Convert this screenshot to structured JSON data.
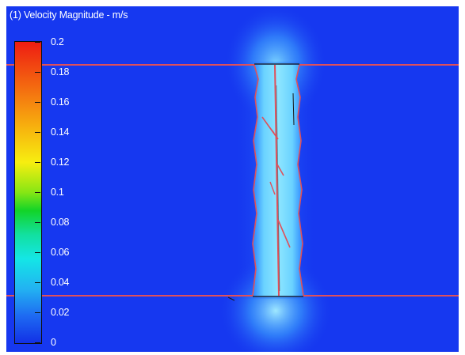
{
  "chart_data": {
    "type": "heatmap",
    "title": "(1) Velocity Magnitude - m/s",
    "quantity": "Velocity Magnitude",
    "unit": "m/s",
    "scale_min": 0,
    "scale_max": 0.2,
    "tick_labels": [
      "0.2",
      "0.18",
      "0.16",
      "0.14",
      "0.12",
      "0.1",
      "0.08",
      "0.06",
      "0.04",
      "0.02",
      "0"
    ],
    "colormap": [
      "#1230e6",
      "#1e6af2",
      "#22b2f2",
      "#14e6e6",
      "#12e0a0",
      "#12d428",
      "#86e614",
      "#f7ee10",
      "#f7b00e",
      "#f46a10",
      "#ee1c12"
    ],
    "background_color": "#1638f0",
    "wall_color": "#e0505a",
    "grid": false,
    "legend": "left"
  }
}
